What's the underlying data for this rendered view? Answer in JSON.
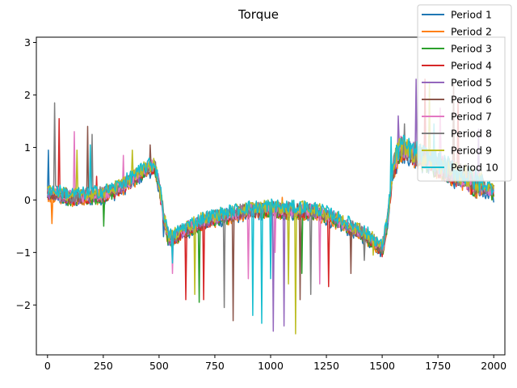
{
  "chart_data": {
    "type": "line",
    "title": "Torque",
    "xlabel": "",
    "ylabel": "",
    "xlim": [
      -50,
      2050
    ],
    "ylim": [
      -2.95,
      3.1
    ],
    "xticks": [
      0,
      250,
      500,
      750,
      1000,
      1250,
      1500,
      1750,
      2000
    ],
    "yticks": [
      -2,
      -1,
      0,
      1,
      2,
      3
    ],
    "ytick_labels": [
      "−2",
      "−1",
      "0",
      "1",
      "2",
      "3"
    ],
    "grid": false,
    "legend_position": "top-right",
    "baseline": {
      "x": [
        0,
        50,
        100,
        150,
        200,
        250,
        300,
        350,
        400,
        450,
        480,
        500,
        520,
        540,
        560,
        600,
        650,
        700,
        750,
        800,
        850,
        900,
        950,
        1000,
        1050,
        1100,
        1150,
        1200,
        1250,
        1300,
        1350,
        1400,
        1450,
        1480,
        1500,
        1520,
        1550,
        1580,
        1600,
        1650,
        1700,
        1750,
        1800,
        1850,
        1900,
        1950,
        2000
      ],
      "y": [
        0.15,
        0.1,
        0.05,
        0.05,
        0.08,
        0.1,
        0.18,
        0.3,
        0.45,
        0.6,
        0.62,
        0.3,
        -0.3,
        -0.7,
        -0.75,
        -0.6,
        -0.5,
        -0.4,
        -0.35,
        -0.3,
        -0.25,
        -0.2,
        -0.2,
        -0.15,
        -0.2,
        -0.2,
        -0.2,
        -0.22,
        -0.3,
        -0.4,
        -0.5,
        -0.6,
        -0.75,
        -0.85,
        -0.95,
        -0.5,
        0.6,
        1.0,
        0.95,
        0.85,
        0.75,
        0.65,
        0.55,
        0.45,
        0.35,
        0.25,
        0.15
      ]
    },
    "series": [
      {
        "name": "Period 1",
        "color": "#1f77b4",
        "spikes": [
          [
            5,
            0.95
          ],
          [
            520,
            -0.7
          ],
          [
            1500,
            -0.95
          ]
        ]
      },
      {
        "name": "Period 2",
        "color": "#ff7f0e",
        "spikes": [
          [
            20,
            -0.45
          ],
          [
            1050,
            0.05
          ],
          [
            1820,
            1.6
          ]
        ]
      },
      {
        "name": "Period 3",
        "color": "#2ca02c",
        "spikes": [
          [
            250,
            -0.5
          ],
          [
            680,
            -1.95
          ],
          [
            1140,
            -1.4
          ]
        ]
      },
      {
        "name": "Period 4",
        "color": "#d62728",
        "spikes": [
          [
            50,
            1.55
          ],
          [
            220,
            0.45
          ],
          [
            620,
            -1.9
          ],
          [
            700,
            -1.9
          ],
          [
            1260,
            -1.65
          ],
          [
            1690,
            2.3
          ],
          [
            1840,
            1.9
          ]
        ]
      },
      {
        "name": "Period 5",
        "color": "#9467bd",
        "spikes": [
          [
            1010,
            -2.5
          ],
          [
            1060,
            -2.4
          ],
          [
            1570,
            1.6
          ],
          [
            1650,
            2.3
          ],
          [
            1930,
            1.35
          ]
        ]
      },
      {
        "name": "Period 6",
        "color": "#8c564b",
        "spikes": [
          [
            180,
            1.4
          ],
          [
            460,
            1.05
          ],
          [
            830,
            -2.3
          ],
          [
            1130,
            -1.9
          ],
          [
            1360,
            -1.4
          ],
          [
            1820,
            2.2
          ]
        ]
      },
      {
        "name": "Period 7",
        "color": "#e377c2",
        "spikes": [
          [
            120,
            1.3
          ],
          [
            340,
            0.85
          ],
          [
            560,
            -1.4
          ],
          [
            900,
            -1.5
          ],
          [
            1020,
            -1.0
          ],
          [
            1220,
            -1.6
          ],
          [
            1760,
            1.75
          ]
        ]
      },
      {
        "name": "Period 8",
        "color": "#7f7f7f",
        "spikes": [
          [
            30,
            1.85
          ],
          [
            200,
            1.25
          ],
          [
            790,
            -2.05
          ],
          [
            1180,
            -1.8
          ],
          [
            1420,
            -1.15
          ],
          [
            1600,
            1.45
          ]
        ]
      },
      {
        "name": "Period 9",
        "color": "#bcbd22",
        "spikes": [
          [
            130,
            0.95
          ],
          [
            380,
            0.95
          ],
          [
            660,
            -1.8
          ],
          [
            1080,
            -1.6
          ],
          [
            1110,
            -2.55
          ],
          [
            1460,
            -1.05
          ],
          [
            1710,
            2.25
          ]
        ]
      },
      {
        "name": "Period 10",
        "color": "#17becf",
        "spikes": [
          [
            190,
            1.05
          ],
          [
            560,
            -1.2
          ],
          [
            920,
            -2.2
          ],
          [
            960,
            -2.35
          ],
          [
            1000,
            -1.5
          ],
          [
            1540,
            1.2
          ],
          [
            1730,
            1.45
          ]
        ]
      }
    ]
  }
}
